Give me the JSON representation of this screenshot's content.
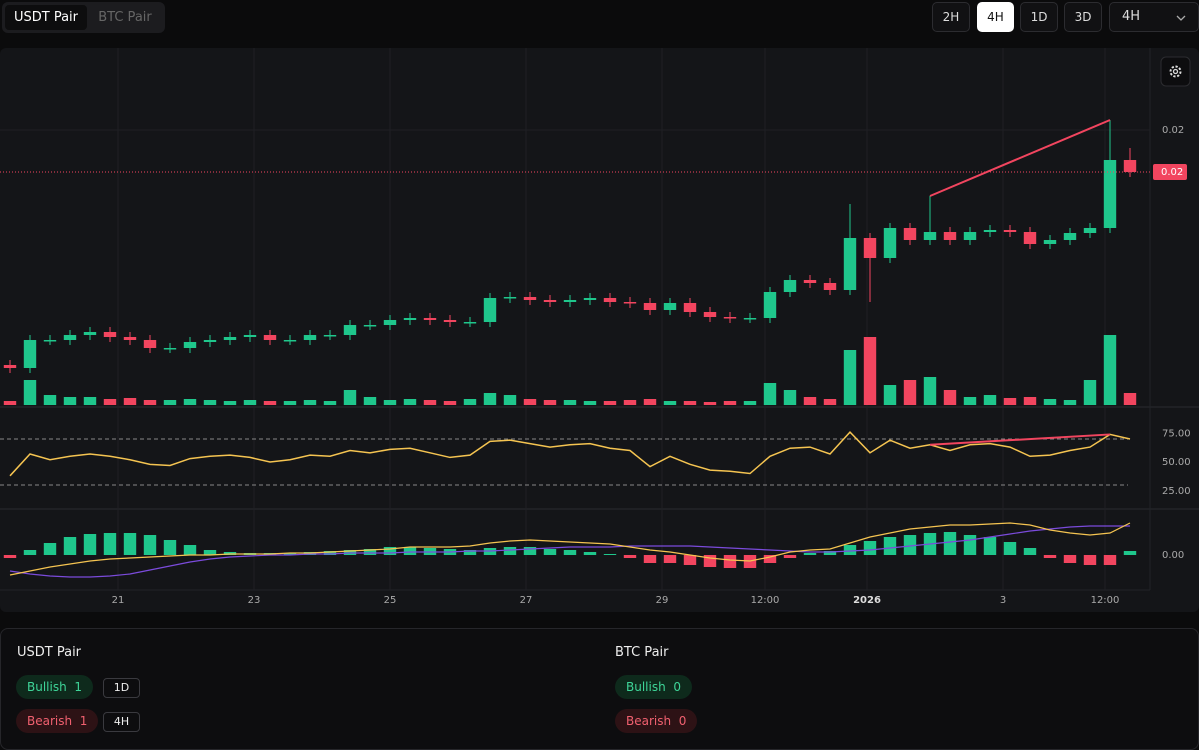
{
  "tabs": [
    "USDT Pair",
    "BTC Pair"
  ],
  "active_tab": 0,
  "timeframes": [
    "2H",
    "4H",
    "1D",
    "3D"
  ],
  "active_timeframe": 1,
  "timeframe_select": "4H",
  "chart_data": {
    "type": "candlestick",
    "xlim": [
      -0.5,
      57
    ],
    "xticks": [
      {
        "value": 5.4,
        "label": "21"
      },
      {
        "value": 12.2,
        "label": "23"
      },
      {
        "value": 19,
        "label": "25"
      },
      {
        "value": 25.8,
        "label": "27"
      },
      {
        "value": 32.6,
        "label": "29"
      },
      {
        "value": 37.75,
        "label": "12:00"
      },
      {
        "value": 42.85,
        "label": "2026",
        "bold": true
      },
      {
        "value": 49.65,
        "label": "3"
      },
      {
        "value": 54.75,
        "label": "12:00"
      }
    ],
    "ylim": [
      0.014,
      0.02114
    ],
    "yticks": [
      {
        "value": 0.0195,
        "label": "0.02"
      }
    ],
    "last_price_label": "0.02",
    "up_color": "#1fc78c",
    "down_color": "#f2455f",
    "open": [
      0.0148,
      0.01474,
      0.0153,
      0.0153,
      0.0154,
      0.01546,
      0.01536,
      0.0153,
      0.01514,
      0.01514,
      0.01526,
      0.0153,
      0.01536,
      0.0154,
      0.0153,
      0.0153,
      0.0154,
      0.0154,
      0.0156,
      0.0156,
      0.0157,
      0.01574,
      0.0157,
      0.01566,
      0.01566,
      0.01614,
      0.01616,
      0.0161,
      0.01606,
      0.0161,
      0.01614,
      0.01606,
      0.01604,
      0.0159,
      0.01604,
      0.01586,
      0.01576,
      0.01574,
      0.01574,
      0.01626,
      0.0165,
      0.01644,
      0.0163,
      0.01734,
      0.01694,
      0.01754,
      0.0173,
      0.01746,
      0.0173,
      0.01746,
      0.0175,
      0.01746,
      0.01722,
      0.0173,
      0.01744,
      0.01754,
      0.0189
    ],
    "high": [
      0.0149,
      0.0154,
      0.0154,
      0.0155,
      0.01556,
      0.01556,
      0.01546,
      0.0154,
      0.01524,
      0.01536,
      0.0154,
      0.01546,
      0.0155,
      0.0155,
      0.0154,
      0.0155,
      0.0155,
      0.0157,
      0.0157,
      0.0158,
      0.01584,
      0.01584,
      0.0158,
      0.01576,
      0.01624,
      0.01626,
      0.01626,
      0.0162,
      0.0162,
      0.01624,
      0.01624,
      0.01616,
      0.01614,
      0.01614,
      0.01614,
      0.01596,
      0.01586,
      0.01584,
      0.01636,
      0.0166,
      0.0166,
      0.01654,
      0.01802,
      0.01744,
      0.01764,
      0.01764,
      0.01818,
      0.01756,
      0.01756,
      0.0176,
      0.0176,
      0.01756,
      0.0174,
      0.01754,
      0.01764,
      0.0197,
      0.01914
    ],
    "low": [
      0.01464,
      0.01464,
      0.0152,
      0.0152,
      0.0153,
      0.01526,
      0.0152,
      0.01504,
      0.01504,
      0.01504,
      0.01516,
      0.0152,
      0.01526,
      0.0152,
      0.0152,
      0.0152,
      0.0153,
      0.0153,
      0.0155,
      0.0155,
      0.0156,
      0.0156,
      0.01556,
      0.01556,
      0.01556,
      0.01604,
      0.016,
      0.01596,
      0.01596,
      0.016,
      0.01596,
      0.01594,
      0.0158,
      0.0158,
      0.01576,
      0.01566,
      0.01564,
      0.01564,
      0.01564,
      0.01616,
      0.01634,
      0.0162,
      0.0162,
      0.01606,
      0.01684,
      0.0172,
      0.0172,
      0.0172,
      0.0172,
      0.01736,
      0.01736,
      0.01712,
      0.01712,
      0.0172,
      0.01734,
      0.01744,
      0.01856
    ],
    "close": [
      0.01474,
      0.0153,
      0.0153,
      0.0154,
      0.01546,
      0.01536,
      0.0153,
      0.01514,
      0.01514,
      0.01526,
      0.0153,
      0.01536,
      0.0154,
      0.0153,
      0.0153,
      0.0154,
      0.0154,
      0.0156,
      0.0156,
      0.0157,
      0.01574,
      0.0157,
      0.01566,
      0.01566,
      0.01614,
      0.01616,
      0.0161,
      0.01606,
      0.0161,
      0.01614,
      0.01606,
      0.01604,
      0.0159,
      0.01604,
      0.01586,
      0.01576,
      0.01574,
      0.01574,
      0.01626,
      0.0165,
      0.01644,
      0.0163,
      0.01734,
      0.01694,
      0.01754,
      0.0173,
      0.01746,
      0.0173,
      0.01746,
      0.0175,
      0.01746,
      0.01722,
      0.0173,
      0.01744,
      0.01754,
      0.0189,
      0.01866
    ],
    "volume": {
      "ylim": [
        0,
        100
      ],
      "values": [
        4,
        25,
        10,
        8,
        8,
        6,
        7,
        5,
        5,
        6,
        5,
        4,
        5,
        4,
        4,
        5,
        4,
        15,
        8,
        5,
        6,
        5,
        4,
        6,
        12,
        10,
        6,
        5,
        5,
        4,
        4,
        5,
        6,
        4,
        4,
        3,
        4,
        4,
        22,
        15,
        8,
        6,
        55,
        68,
        20,
        25,
        28,
        15,
        8,
        10,
        7,
        8,
        6,
        5,
        25,
        70,
        12
      ]
    },
    "rsi": {
      "color": "#f5c451",
      "ylim": [
        10,
        97
      ],
      "yticks": [
        {
          "value": 75,
          "label": "75.00"
        },
        {
          "value": 50,
          "label": "50.00"
        },
        {
          "value": 25,
          "label": "25.00"
        }
      ],
      "levels": [
        70,
        30
      ],
      "values": [
        38,
        57,
        52,
        55,
        57,
        55,
        52,
        48,
        47,
        53,
        55,
        56,
        54,
        50,
        52,
        56,
        55,
        60,
        58,
        61,
        62,
        58,
        54,
        56,
        68,
        69,
        66,
        63,
        65,
        66,
        62,
        60,
        46,
        55,
        48,
        43,
        42,
        40,
        55,
        62,
        63,
        57,
        76,
        58,
        69,
        62,
        65,
        60,
        65,
        66,
        63,
        55,
        56,
        60,
        63,
        74,
        70
      ]
    },
    "macd": {
      "ylim": [
        -0.00035,
        0.00045
      ],
      "yticks": [
        {
          "value": 0,
          "label": "0.00"
        }
      ],
      "macd_color": "#f5c451",
      "signal_color": "#7b4bdc",
      "histogram": [
        -3e-05,
        5e-05,
        0.00012,
        0.00018,
        0.00021,
        0.00022,
        0.00022,
        0.0002,
        0.00015,
        0.0001,
        5e-05,
        3e-05,
        2e-05,
        2e-05,
        2e-05,
        3e-05,
        4e-05,
        5e-05,
        6e-05,
        8e-05,
        8e-05,
        7e-05,
        6e-05,
        5e-05,
        7e-05,
        8e-05,
        8e-05,
        6e-05,
        5e-05,
        3e-05,
        1e-05,
        -3e-05,
        -8e-05,
        -8e-05,
        -0.0001,
        -0.00012,
        -0.00013,
        -0.00013,
        -8e-05,
        -3e-05,
        2e-05,
        4e-05,
        0.0001,
        0.00014,
        0.00018,
        0.0002,
        0.00022,
        0.00023,
        0.0002,
        0.00018,
        0.00013,
        7e-05,
        -3e-05,
        -8e-05,
        -0.0001,
        -0.0001,
        4e-05
      ],
      "macd": [
        -0.0002,
        -0.00016,
        -0.00012,
        -9e-05,
        -6e-05,
        -4e-05,
        -3e-05,
        -2e-05,
        -1e-05,
        0,
        0,
        1e-05,
        1e-05,
        1e-05,
        2e-05,
        2e-05,
        3e-05,
        4e-05,
        5e-05,
        6e-05,
        8e-05,
        8e-05,
        8e-05,
        9e-05,
        0.00012,
        0.00014,
        0.00015,
        0.00014,
        0.00013,
        0.00012,
        0.00011,
        8e-05,
        5e-05,
        3e-05,
        0,
        -3e-05,
        -5e-05,
        -6e-05,
        -2e-05,
        3e-05,
        5e-05,
        6e-05,
        0.00012,
        0.00018,
        0.00022,
        0.00026,
        0.00028,
        0.0003,
        0.0003,
        0.00031,
        0.00032,
        0.0003,
        0.00025,
        0.00022,
        0.0002,
        0.00022,
        0.00032
      ],
      "signal": [
        -0.00016,
        -0.00019,
        -0.00021,
        -0.00022,
        -0.00022,
        -0.00021,
        -0.00019,
        -0.00015,
        -0.00011,
        -7e-05,
        -4e-05,
        -2e-05,
        -1e-05,
        0,
        0,
        1e-05,
        1e-05,
        2e-05,
        2e-05,
        2e-05,
        3e-05,
        3e-05,
        3e-05,
        4e-05,
        4e-05,
        5e-05,
        6e-05,
        7e-05,
        8e-05,
        8e-05,
        8e-05,
        9e-05,
        9e-05,
        9e-05,
        9e-05,
        8e-05,
        7e-05,
        6e-05,
        5e-05,
        4e-05,
        3e-05,
        3e-05,
        4e-05,
        5e-05,
        7e-05,
        9e-05,
        0.00011,
        0.00013,
        0.00015,
        0.00018,
        0.00021,
        0.00024,
        0.00026,
        0.00028,
        0.00029,
        0.00029,
        0.00029
      ]
    }
  },
  "summary": [
    {
      "title": "USDT Pair",
      "bullish": {
        "label": "Bullish",
        "count": 1,
        "tag": "1D"
      },
      "bearish": {
        "label": "Bearish",
        "count": 1,
        "tag": "4H"
      }
    },
    {
      "title": "BTC Pair",
      "bullish": {
        "label": "Bullish",
        "count": 0
      },
      "bearish": {
        "label": "Bearish",
        "count": 0
      }
    }
  ]
}
